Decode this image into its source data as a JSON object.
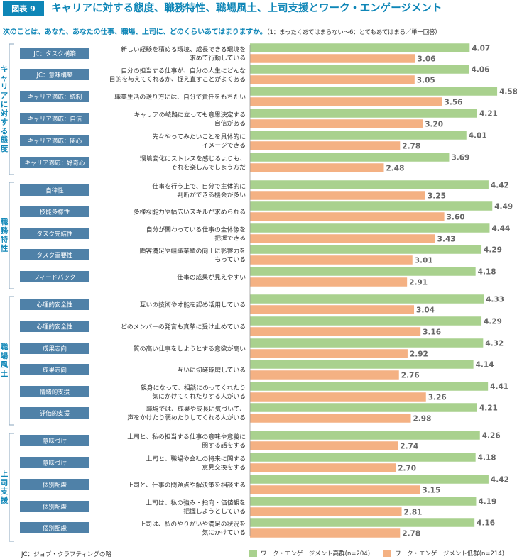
{
  "header": {
    "badge": "図表 9",
    "title": "キャリアに対する態度、職務特性、職場風土、上司支援とワーク・エンゲージメント"
  },
  "question": {
    "text": "次のことは、あなた、あなたの仕事、職場、上司に、どのくらいあてはまりますか。",
    "note": "（1：まったくあてはまらない〜6：とてもあてはまる／単一回答）"
  },
  "footnote": "JC：ジョブ・クラフティングの略",
  "colors": {
    "high": "#a9d18e",
    "low": "#f4b183",
    "tag": "#4f81a8",
    "accent": "#0e86b7"
  },
  "chart_data": {
    "type": "bar",
    "orientation": "horizontal",
    "series": [
      {
        "name": "ワーク・エンゲージメント高群(n=204)",
        "color": "#a9d18e"
      },
      {
        "name": "ワーク・エンゲージメント低群(n=214)",
        "color": "#f4b183"
      }
    ],
    "groups": [
      {
        "label": "キャリアに対する態度",
        "items": [
          {
            "tag": "JC：タスク構築",
            "text": [
              "新しい経験を積める環境、成長できる環境を",
              "求めて行動している"
            ],
            "high": 4.07,
            "low": 3.06
          },
          {
            "tag": "JC：意味構築",
            "text": [
              "自分の担当する仕事が、自分の人生にどんな",
              "目的を与えてくれるか、捉え直すことがよくある"
            ],
            "high": 4.06,
            "low": 3.05
          },
          {
            "tag": "キャリア適応：統制",
            "text": [
              "職業生活の送り方には、自分で責任をもちたい"
            ],
            "high": 4.58,
            "low": 3.56
          },
          {
            "tag": "キャリア適応：自信",
            "text": [
              "キャリアの岐路に立っても意思決定する",
              "自信がある"
            ],
            "high": 4.21,
            "low": 3.2
          },
          {
            "tag": "キャリア適応：関心",
            "text": [
              "先々やってみたいことを具体的に",
              "イメージできる"
            ],
            "high": 4.01,
            "low": 2.78
          },
          {
            "tag": "キャリア適応：好奇心",
            "text": [
              "環境変化にストレスを感じるよりも、",
              "それを楽しんでしまう方だ"
            ],
            "high": 3.69,
            "low": 2.48
          }
        ]
      },
      {
        "label": "職務特性",
        "items": [
          {
            "tag": "自律性",
            "text": [
              "仕事を行う上で、自分で主体的に",
              "判断ができる機会が多い"
            ],
            "high": 4.42,
            "low": 3.25
          },
          {
            "tag": "技能多様性",
            "text": [
              "多様な能力や幅広いスキルが求められる"
            ],
            "high": 4.49,
            "low": 3.6
          },
          {
            "tag": "タスク完結性",
            "text": [
              "自分が関わっている仕事の全体像を",
              "把握できる"
            ],
            "high": 4.44,
            "low": 3.43
          },
          {
            "tag": "タスク重要性",
            "text": [
              "顧客満足や組織業績の向上に影響力を",
              "もっている"
            ],
            "high": 4.29,
            "low": 3.01
          },
          {
            "tag": "フィードバック",
            "text": [
              "仕事の成果が見えやすい"
            ],
            "high": 4.18,
            "low": 2.91
          }
        ]
      },
      {
        "label": "職場風土",
        "items": [
          {
            "tag": "心理的安全性",
            "text": [
              "互いの技術や才能を認め活用している"
            ],
            "high": 4.33,
            "low": 3.04
          },
          {
            "tag": "心理的安全性",
            "text": [
              "どのメンバーの発言も真摯に受け止めている"
            ],
            "high": 4.29,
            "low": 3.16
          },
          {
            "tag": "成果志向",
            "text": [
              "質の高い仕事をしようとする意欲が高い"
            ],
            "high": 4.32,
            "low": 2.92
          },
          {
            "tag": "成果志向",
            "text": [
              "互いに切磋琢磨している"
            ],
            "high": 4.14,
            "low": 2.76
          },
          {
            "tag": "情緒的支援",
            "text": [
              "親身になって、相談にのってくれたり",
              "気にかけてくれたりする人がいる"
            ],
            "high": 4.41,
            "low": 3.26
          },
          {
            "tag": "評価的支援",
            "text": [
              "職場では、成果や成長に気づいて、",
              "声をかけたり褒めたりしてくれる人がいる"
            ],
            "high": 4.21,
            "low": 2.98
          }
        ]
      },
      {
        "label": "上司支援",
        "items": [
          {
            "tag": "意味づけ",
            "text": [
              "上司と、私の担当する仕事の意味や意義に",
              "関する話をする"
            ],
            "high": 4.26,
            "low": 2.74
          },
          {
            "tag": "意味づけ",
            "text": [
              "上司と、職場や会社の将来に関する",
              "意見交換をする"
            ],
            "high": 4.18,
            "low": 2.7
          },
          {
            "tag": "個別配慮",
            "text": [
              "上司と、仕事の問題点や解決策を相談する"
            ],
            "high": 4.42,
            "low": 3.15
          },
          {
            "tag": "個別配慮",
            "text": [
              "上司は、私の強み・指向・価値観を",
              "把握しようとしている"
            ],
            "high": 4.19,
            "low": 2.81
          },
          {
            "tag": "個別配慮",
            "text": [
              "上司は、私のやりがいや満足の状況を",
              "気にかけている"
            ],
            "high": 4.16,
            "low": 2.78
          }
        ]
      }
    ]
  }
}
